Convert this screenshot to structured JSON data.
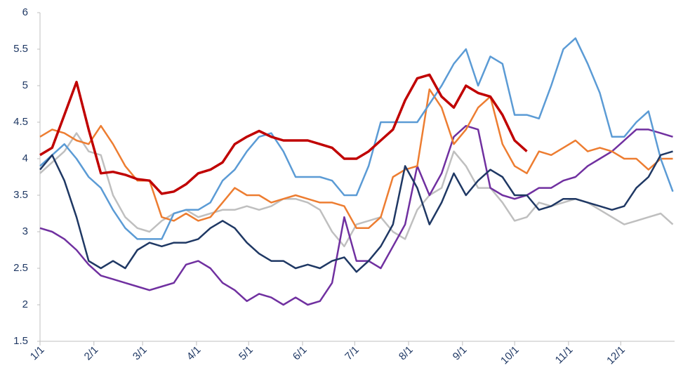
{
  "chart_data": {
    "type": "line",
    "x": [
      0,
      7,
      14,
      21,
      28,
      35,
      42,
      49,
      56,
      63,
      70,
      77,
      84,
      91,
      98,
      105,
      112,
      119,
      126,
      133,
      140,
      147,
      154,
      161,
      168,
      175,
      182,
      189,
      196,
      203,
      210,
      217,
      224,
      231,
      238,
      245,
      252,
      259,
      266,
      273,
      280,
      287,
      294,
      301,
      308,
      315,
      322,
      329,
      336,
      343,
      350,
      357,
      364
    ],
    "xlim": [
      0,
      365
    ],
    "xticks": [
      {
        "value": 0,
        "label": "1/1"
      },
      {
        "value": 31,
        "label": "2/1"
      },
      {
        "value": 59,
        "label": "3/1"
      },
      {
        "value": 90,
        "label": "4/1"
      },
      {
        "value": 120,
        "label": "5/1"
      },
      {
        "value": 151,
        "label": "6/1"
      },
      {
        "value": 181,
        "label": "7/1"
      },
      {
        "value": 212,
        "label": "8/1"
      },
      {
        "value": 243,
        "label": "9/1"
      },
      {
        "value": 273,
        "label": "10/1"
      },
      {
        "value": 304,
        "label": "11/1"
      },
      {
        "value": 334,
        "label": "12/1"
      }
    ],
    "ylim": [
      1.5,
      6
    ],
    "yticks": [
      1.5,
      2,
      2.5,
      3,
      3.5,
      4,
      4.5,
      5,
      5.5,
      6
    ],
    "series": [
      {
        "color": "#bfbfbf",
        "values": [
          3.8,
          3.95,
          4.1,
          4.35,
          4.1,
          4.05,
          3.5,
          3.2,
          3.05,
          3.0,
          3.15,
          3.25,
          3.3,
          3.2,
          3.25,
          3.3,
          3.3,
          3.35,
          3.3,
          3.35,
          3.45,
          3.45,
          3.4,
          3.3,
          3.0,
          2.8,
          3.1,
          3.15,
          3.2,
          3.0,
          2.9,
          3.3,
          3.5,
          3.6,
          4.1,
          3.9,
          3.6,
          3.6,
          3.4,
          3.15,
          3.2,
          3.4,
          3.35,
          3.4,
          3.45,
          3.4,
          3.3,
          3.2,
          3.1,
          3.15,
          3.2,
          3.25,
          3.1
        ]
      },
      {
        "color": "#7030a0",
        "values": [
          3.05,
          3.0,
          2.9,
          2.75,
          2.55,
          2.4,
          2.35,
          2.3,
          2.25,
          2.2,
          2.25,
          2.3,
          2.55,
          2.6,
          2.5,
          2.3,
          2.2,
          2.05,
          2.15,
          2.1,
          2.0,
          2.1,
          2.0,
          2.05,
          2.3,
          3.2,
          2.6,
          2.6,
          2.5,
          2.8,
          3.1,
          3.9,
          3.5,
          3.8,
          4.3,
          4.45,
          4.4,
          3.6,
          3.5,
          3.45,
          3.5,
          3.6,
          3.6,
          3.7,
          3.75,
          3.9,
          4.0,
          4.1,
          4.25,
          4.4,
          4.4,
          4.35,
          4.3
        ]
      },
      {
        "color": "#ed7d31",
        "values": [
          4.3,
          4.4,
          4.35,
          4.25,
          4.2,
          4.45,
          4.2,
          3.9,
          3.7,
          3.7,
          3.2,
          3.15,
          3.25,
          3.15,
          3.2,
          3.4,
          3.6,
          3.5,
          3.5,
          3.4,
          3.45,
          3.5,
          3.45,
          3.4,
          3.4,
          3.35,
          3.05,
          3.05,
          3.2,
          3.75,
          3.85,
          3.9,
          4.95,
          4.7,
          4.2,
          4.4,
          4.7,
          4.85,
          4.2,
          3.9,
          3.8,
          4.1,
          4.05,
          4.15,
          4.25,
          4.1,
          4.15,
          4.1,
          4.0,
          4.0,
          3.85,
          4.0,
          4.0
        ]
      },
      {
        "color": "#5b9bd5",
        "values": [
          3.9,
          4.05,
          4.2,
          4.0,
          3.75,
          3.6,
          3.3,
          3.05,
          2.9,
          2.9,
          2.9,
          3.25,
          3.3,
          3.3,
          3.4,
          3.7,
          3.85,
          4.1,
          4.3,
          4.35,
          4.1,
          3.75,
          3.75,
          3.75,
          3.7,
          3.5,
          3.5,
          3.9,
          4.5,
          4.5,
          4.5,
          4.5,
          4.75,
          5.0,
          5.3,
          5.5,
          5.0,
          5.4,
          5.3,
          4.6,
          4.6,
          4.55,
          5.0,
          5.5,
          5.65,
          5.3,
          4.9,
          4.3,
          4.3,
          4.5,
          4.65,
          4.0,
          3.55
        ]
      },
      {
        "color": "#1f3864",
        "values": [
          3.85,
          4.05,
          3.7,
          3.2,
          2.6,
          2.5,
          2.6,
          2.5,
          2.75,
          2.85,
          2.8,
          2.85,
          2.85,
          2.9,
          3.05,
          3.15,
          3.05,
          2.85,
          2.7,
          2.6,
          2.6,
          2.5,
          2.55,
          2.5,
          2.6,
          2.65,
          2.45,
          2.6,
          2.8,
          3.1,
          3.9,
          3.6,
          3.1,
          3.4,
          3.8,
          3.5,
          3.7,
          3.85,
          3.75,
          3.5,
          3.5,
          3.3,
          3.35,
          3.45,
          3.45,
          3.4,
          3.35,
          3.3,
          3.35,
          3.6,
          3.75,
          4.05,
          4.1
        ]
      },
      {
        "color": "#c00000",
        "values": [
          4.05,
          4.15,
          4.6,
          5.05,
          4.4,
          3.8,
          3.82,
          3.78,
          3.72,
          3.7,
          3.52,
          3.55,
          3.65,
          3.8,
          3.85,
          3.95,
          4.2,
          4.3,
          4.38,
          4.3,
          4.25,
          4.25,
          4.25,
          4.2,
          4.15,
          4.0,
          4.0,
          4.1,
          4.25,
          4.4,
          4.8,
          5.1,
          5.15,
          4.85,
          4.7,
          5.0,
          4.9,
          4.85,
          4.6,
          4.25,
          4.1,
          null,
          null,
          null,
          null,
          null,
          null,
          null,
          null,
          null,
          null,
          null,
          null
        ]
      }
    ]
  }
}
